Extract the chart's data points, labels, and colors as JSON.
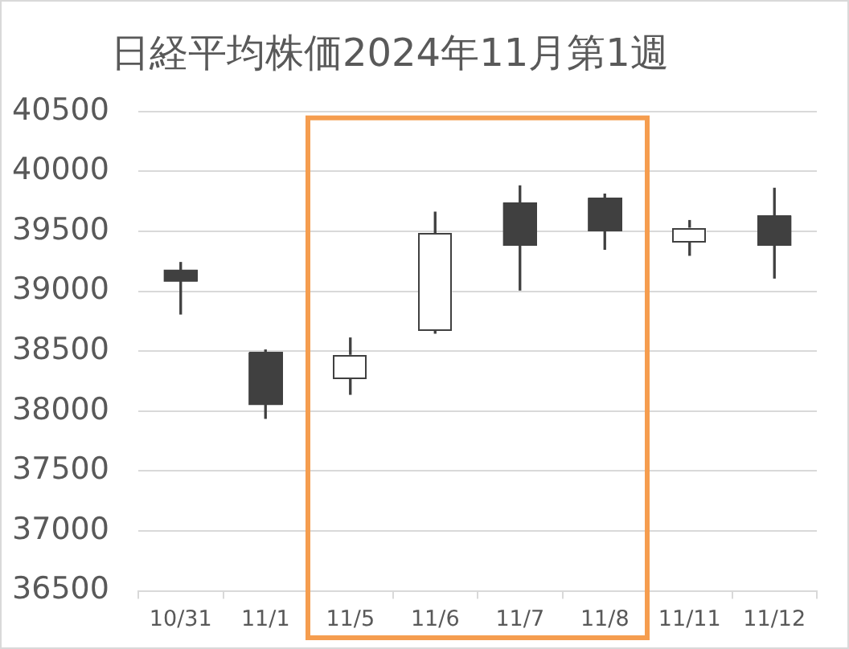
{
  "chart_data": {
    "type": "candlestick",
    "title": "日経平均株価2024年11月第1週",
    "categories": [
      "10/31",
      "11/1",
      "11/5",
      "11/6",
      "11/7",
      "11/8",
      "11/11",
      "11/12"
    ],
    "ohlc": [
      [
        39180,
        39240,
        38810,
        39080
      ],
      [
        38490,
        38510,
        37940,
        38050
      ],
      [
        38270,
        38610,
        38140,
        38470
      ],
      [
        38670,
        39660,
        38650,
        39480
      ],
      [
        39740,
        39880,
        39010,
        39380
      ],
      [
        39780,
        39810,
        39350,
        39500
      ],
      [
        39410,
        39590,
        39300,
        39530
      ],
      [
        39630,
        39860,
        39110,
        39380
      ]
    ],
    "color": "#404040",
    "colors": [
      "#404040",
      "#404040",
      "#ffffff",
      "#ffffff",
      "#404040",
      "#404040",
      "#ffffff",
      "#404040"
    ],
    "ylim": [
      36500,
      40500
    ],
    "yticks": [
      36500,
      37000,
      37500,
      38000,
      38500,
      39000,
      39500,
      40000,
      40500
    ],
    "grid": "y",
    "bands": [
      {
        "axis": "x",
        "from": "11/5",
        "to": "11/8",
        "color": "#f59d4f"
      }
    ]
  }
}
